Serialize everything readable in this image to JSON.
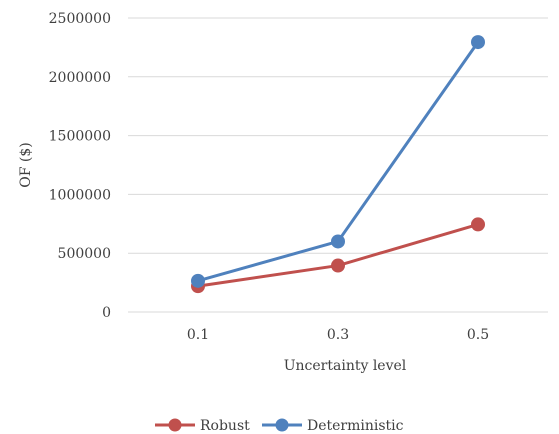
{
  "chart_data": {
    "type": "line",
    "title": "",
    "xlabel": "Uncertainty level",
    "ylabel": "OF ($)",
    "categories": [
      "0.1",
      "0.3",
      "0.5"
    ],
    "ylim": [
      0,
      2500000
    ],
    "yticks": [
      "0",
      "500000",
      "1000000",
      "1500000",
      "2000000",
      "2500000"
    ],
    "ytick_values": [
      0,
      500000,
      1000000,
      1500000,
      2000000,
      2500000
    ],
    "grid": true,
    "legend_position": "bottom",
    "series": [
      {
        "name": "Robust",
        "values": [
          220000,
          395000,
          745000
        ],
        "color": "#c0504d"
      },
      {
        "name": "Deterministic",
        "values": [
          265000,
          600000,
          2295000
        ],
        "color": "#4f81bd"
      }
    ]
  }
}
